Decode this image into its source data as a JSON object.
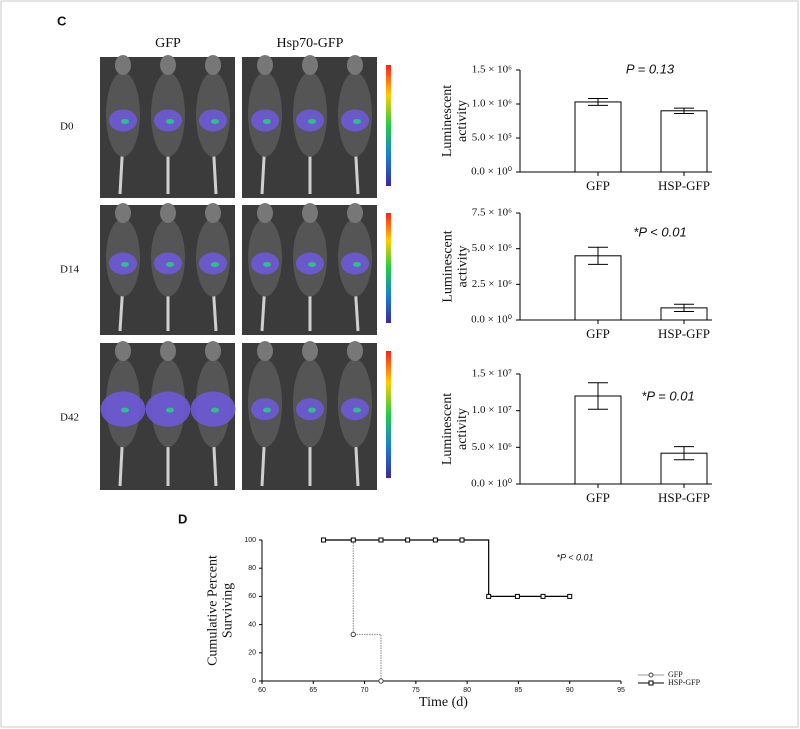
{
  "panel_c": {
    "label": "C",
    "columns": [
      "GFP",
      "Hsp70-GFP"
    ],
    "rows": [
      "D0",
      "D14",
      "D42"
    ]
  },
  "panel_d": {
    "label": "D"
  },
  "chart_data": [
    {
      "type": "bar",
      "y_label": "Luminescent activity",
      "categories": [
        "GFP",
        "HSP-GFP"
      ],
      "values": [
        1030000,
        900000
      ],
      "errors": [
        50000,
        40000
      ],
      "color": "#ffffff",
      "ylim": [
        0,
        1500000
      ],
      "yticks": [
        {
          "value": 0,
          "label": "0.0 × 10⁰"
        },
        {
          "value": 500000,
          "label": "5.0 × 10⁵"
        },
        {
          "value": 1000000,
          "label": "1.0 × 10⁶"
        },
        {
          "value": 1500000,
          "label": "1.5 × 10⁶"
        }
      ],
      "annotation": "P = 0.13"
    },
    {
      "type": "bar",
      "y_label": "Luminescent activity",
      "categories": [
        "GFP",
        "HSP-GFP"
      ],
      "values": [
        4500000,
        850000
      ],
      "errors": [
        600000,
        250000
      ],
      "color": "#ffffff",
      "ylim": [
        0,
        7500000
      ],
      "yticks": [
        {
          "value": 0,
          "label": "0.0 × 10⁰"
        },
        {
          "value": 2500000,
          "label": "2.5 × 10⁶"
        },
        {
          "value": 5000000,
          "label": "5.0 × 10⁶"
        },
        {
          "value": 7500000,
          "label": "7.5 × 10⁶"
        }
      ],
      "annotation": "*P < 0.01"
    },
    {
      "type": "bar",
      "y_label": "Luminescent activity",
      "categories": [
        "GFP",
        "HSP-GFP"
      ],
      "values": [
        12000000,
        4200000
      ],
      "errors": [
        1800000,
        900000
      ],
      "color": "#ffffff",
      "ylim": [
        0,
        15000000
      ],
      "yticks": [
        {
          "value": 0,
          "label": "0.0 × 10⁰"
        },
        {
          "value": 5000000,
          "label": "5.0 × 10⁶"
        },
        {
          "value": 10000000,
          "label": "1.0 × 10⁷"
        },
        {
          "value": 15000000,
          "label": "1.5 × 10⁷"
        }
      ],
      "annotation": "*P = 0.01"
    },
    {
      "type": "line",
      "step": true,
      "x_label": "Time (d)",
      "y_label": "Cumulative Percent Surviving",
      "xlim": [
        60,
        95
      ],
      "xticks": [
        60,
        65,
        70,
        75,
        80,
        85,
        90,
        95
      ],
      "ylim": [
        0,
        100
      ],
      "yticks": [
        0,
        20,
        40,
        60,
        80,
        100
      ],
      "annotation": "*P < 0.01",
      "legend_position": "lower right",
      "series": [
        {
          "name": "GFP",
          "color": "#999999",
          "marker": "circle",
          "x": [
            66,
            68.9,
            71.6
          ],
          "values": [
            100,
            33,
            0
          ]
        },
        {
          "name": "HSP-GFP",
          "color": "#000000",
          "marker": "square",
          "x": [
            66,
            68.9,
            71.6,
            74.2,
            76.9,
            79.5,
            82.1,
            84.9,
            87.4,
            90
          ],
          "values": [
            100,
            100,
            100,
            100,
            100,
            100,
            60,
            60,
            60,
            60
          ]
        }
      ]
    }
  ]
}
